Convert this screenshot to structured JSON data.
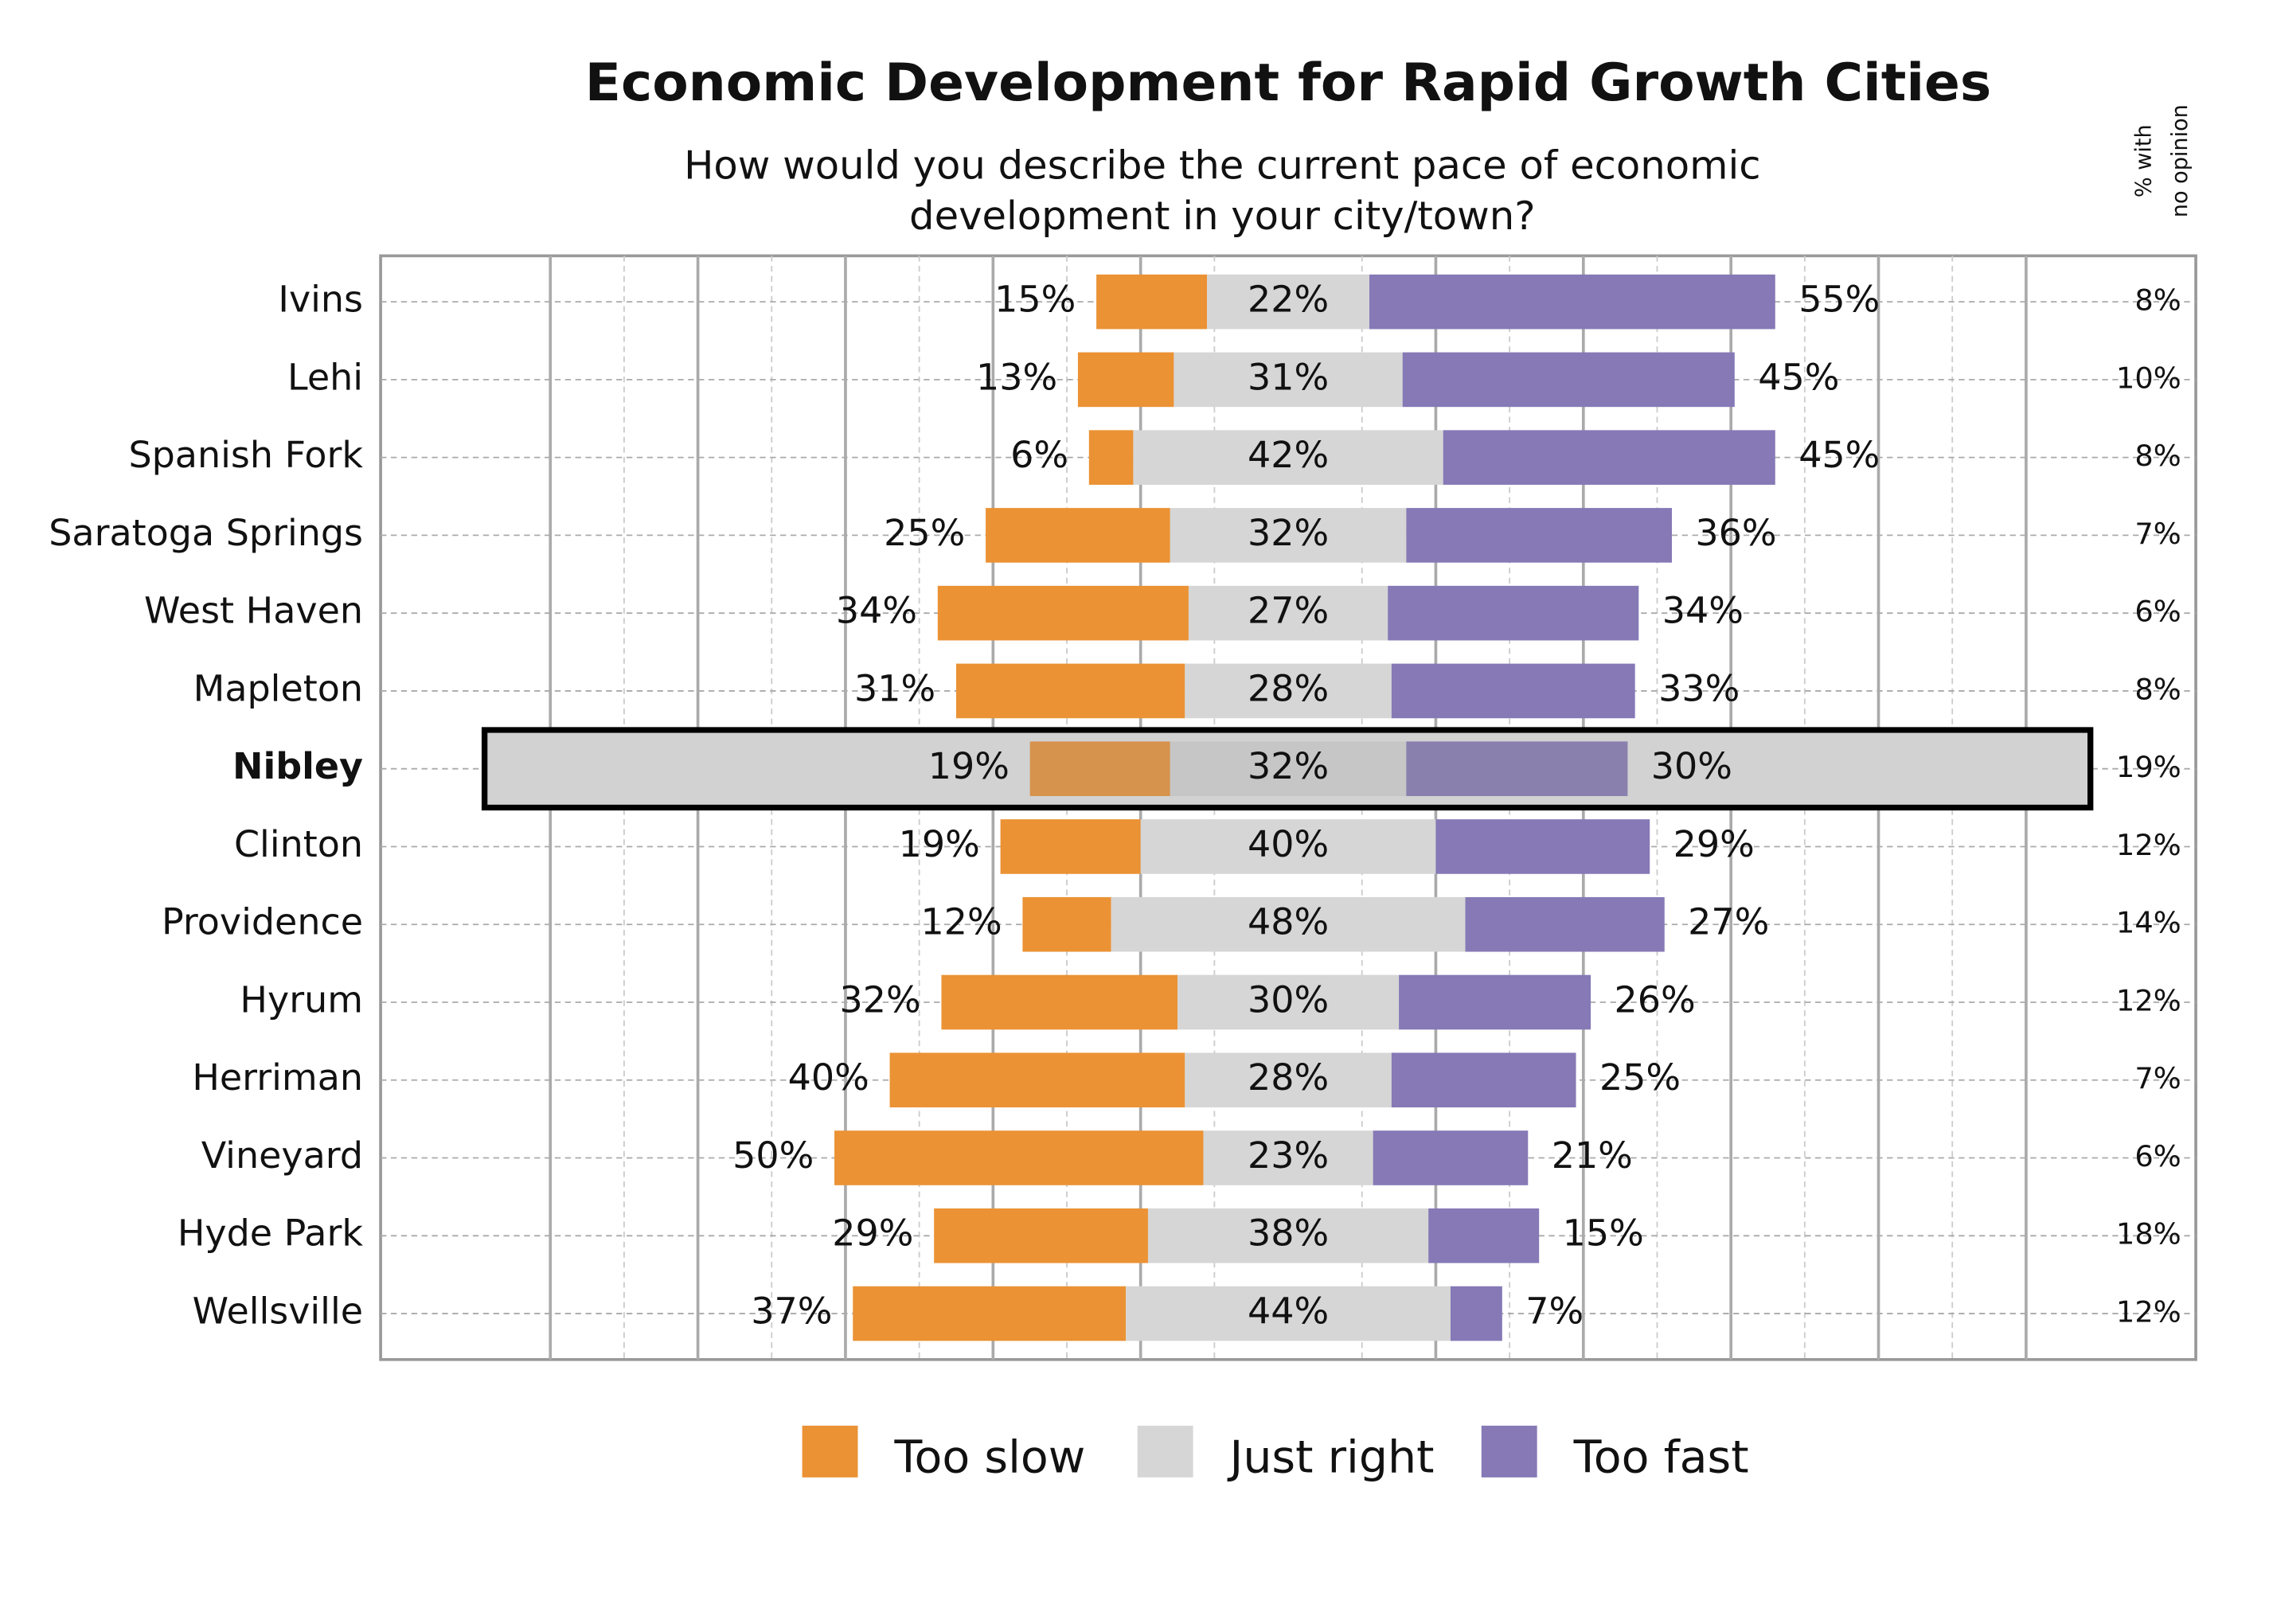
{
  "chart_data": {
    "type": "diverging_bar",
    "title": "Economic Development for Rapid Growth Cities",
    "subtitle": [
      "How would you describe the current pace of economic",
      "development in your city/town?"
    ],
    "categories": [
      "Ivins",
      "Lehi",
      "Spanish Fork",
      "Saratoga Springs",
      "West Haven",
      "Mapleton",
      "Nibley",
      "Clinton",
      "Providence",
      "Hyrum",
      "Herriman",
      "Vineyard",
      "Hyde Park",
      "Wellsville"
    ],
    "highlight": "Nibley",
    "xlim": [
      -123,
      123
    ],
    "xticks": [
      -100,
      -90,
      -80,
      -70,
      -60,
      -50,
      -40,
      -30,
      -20,
      -10,
      10,
      20,
      30,
      40,
      50,
      60,
      70,
      80,
      90,
      100
    ],
    "series": [
      {
        "name": "Too slow",
        "color": "#eb9234",
        "values": [
          15,
          13,
          6,
          25,
          34,
          31,
          19,
          19,
          12,
          32,
          40,
          50,
          29,
          37
        ],
        "value_labels": [
          "15%",
          "13%",
          "6%",
          "25%",
          "34%",
          "31%",
          "19%",
          "19%",
          "12%",
          "32%",
          "40%",
          "50%",
          "29%",
          "37%"
        ]
      },
      {
        "name": "Just right",
        "color": "#d6d6d6",
        "values": [
          22,
          31,
          42,
          32,
          27,
          28,
          32,
          40,
          48,
          30,
          28,
          23,
          38,
          44
        ],
        "value_labels": [
          "22%",
          "31%",
          "42%",
          "32%",
          "27%",
          "28%",
          "32%",
          "40%",
          "48%",
          "30%",
          "28%",
          "23%",
          "38%",
          "44%"
        ]
      },
      {
        "name": "Too fast",
        "color": "#8679b6",
        "values": [
          55,
          45,
          45,
          36,
          34,
          33,
          30,
          29,
          27,
          26,
          25,
          21,
          15,
          7
        ],
        "value_labels": [
          "55%",
          "45%",
          "45%",
          "36%",
          "34%",
          "33%",
          "30%",
          "29%",
          "27%",
          "26%",
          "25%",
          "21%",
          "15%",
          "7%"
        ]
      }
    ],
    "no_opinion_title": [
      "% with",
      "no opinion"
    ],
    "no_opinion": {
      "values": [
        8,
        10,
        8,
        7,
        6,
        8,
        19,
        12,
        14,
        12,
        7,
        6,
        18,
        12
      ],
      "value_labels": [
        "8%",
        "10%",
        "8%",
        "7%",
        "6%",
        "8%",
        "19%",
        "12%",
        "14%",
        "12%",
        "7%",
        "6%",
        "18%",
        "12%"
      ]
    }
  }
}
